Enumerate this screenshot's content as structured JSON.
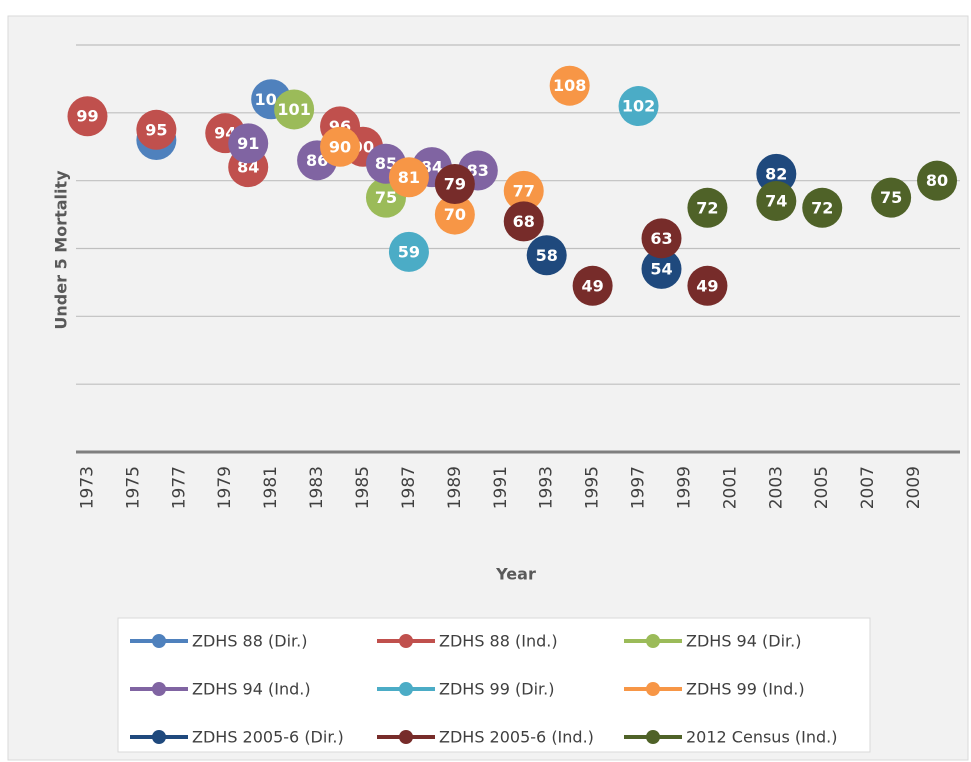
{
  "chart_data": {
    "type": "scatter",
    "y_label": "Under 5 Mortality",
    "x_label": "Year",
    "xlim": [
      1972.5,
      2011
    ],
    "xticks": [
      1973,
      1975,
      1977,
      1979,
      1981,
      1983,
      1985,
      1987,
      1989,
      1991,
      1993,
      1995,
      1997,
      1999,
      2001,
      2003,
      2005,
      2007,
      2009
    ],
    "ylim": [
      0,
      120
    ],
    "yticks": [
      0,
      20,
      40,
      60,
      80,
      100,
      120
    ],
    "grid": true,
    "legend": "bottom",
    "series": [
      {
        "name": "ZDHS 88 (Dir.)",
        "color": "#4f81bd",
        "x": [
          1976,
          1981
        ],
        "values": [
          92,
          104
        ]
      },
      {
        "name": "ZDHS 88 (Ind.)",
        "color": "#c0504d",
        "x": [
          1973,
          1976,
          1979,
          1980,
          1984,
          1985
        ],
        "values": [
          99,
          95,
          94,
          84,
          96,
          90
        ]
      },
      {
        "name": "ZDHS 94 (Dir.)",
        "color": "#9bbb59",
        "x": [
          1982,
          1986
        ],
        "values": [
          101,
          75
        ]
      },
      {
        "name": "ZDHS 94 (Ind.)",
        "color": "#8064a2",
        "x": [
          1980,
          1983,
          1986,
          1988,
          1990
        ],
        "values": [
          91,
          86,
          85,
          84,
          83
        ]
      },
      {
        "name": "ZDHS 99 (Dir.)",
        "color": "#4bacc6",
        "x": [
          1987,
          1997
        ],
        "values": [
          59,
          102
        ]
      },
      {
        "name": "ZDHS 99 (Ind.)",
        "color": "#f79646",
        "x": [
          1984,
          1987,
          1989,
          1992,
          1994
        ],
        "values": [
          90,
          81,
          70,
          77,
          108
        ]
      },
      {
        "name": "ZDHS 2005-6 (Dir.)",
        "color": "#1f497d",
        "x": [
          1993,
          1998,
          2003
        ],
        "values": [
          58,
          54,
          82
        ]
      },
      {
        "name": "ZDHS 2005-6 (Ind.)",
        "color": "#772c2a",
        "x": [
          1989,
          1992,
          1995,
          1998,
          2000
        ],
        "values": [
          79,
          68,
          49,
          63,
          49
        ]
      },
      {
        "name": "2012 Census (Ind.)",
        "color": "#4f6228",
        "x": [
          2000,
          2003,
          2005,
          2008,
          2010
        ],
        "values": [
          72,
          74,
          72,
          75,
          80
        ]
      }
    ]
  }
}
